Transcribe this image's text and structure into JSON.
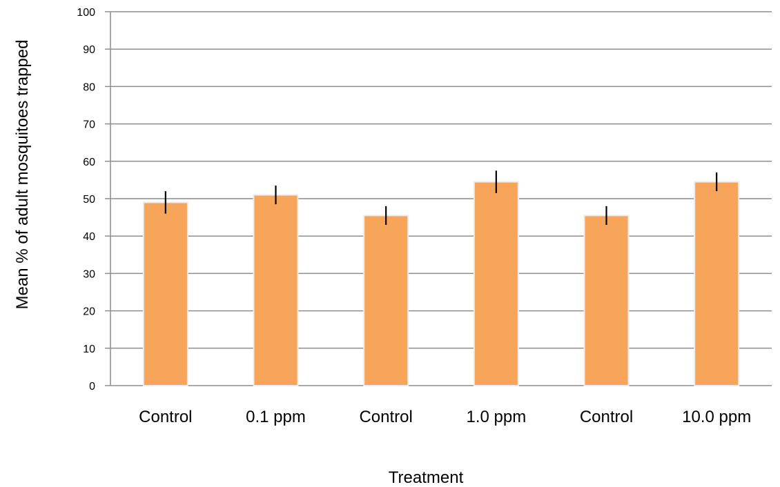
{
  "chart_data": {
    "type": "bar",
    "title": "",
    "xlabel": "Treatment",
    "ylabel": "Mean % of adult mosquitoes trapped",
    "categories": [
      "Control",
      "0.1 ppm",
      "Control",
      "1.0 ppm",
      "Control",
      "10.0 ppm"
    ],
    "series": [
      {
        "values": [
          49,
          51,
          45.5,
          54.5,
          45.5,
          54.5
        ],
        "error": [
          3,
          2.5,
          2.5,
          3,
          2.5,
          2.5
        ]
      }
    ],
    "ylim": [
      0,
      100
    ],
    "yticks": [
      0,
      10,
      20,
      30,
      40,
      50,
      60,
      70,
      80,
      90,
      100
    ],
    "grid": true,
    "legend": "none",
    "colors": {
      "bar": "#f6a55a",
      "bar_edge": "#ececec",
      "error_bar": "#000000",
      "grid": "#8c8c8c",
      "axis": "#8c8c8c"
    }
  }
}
